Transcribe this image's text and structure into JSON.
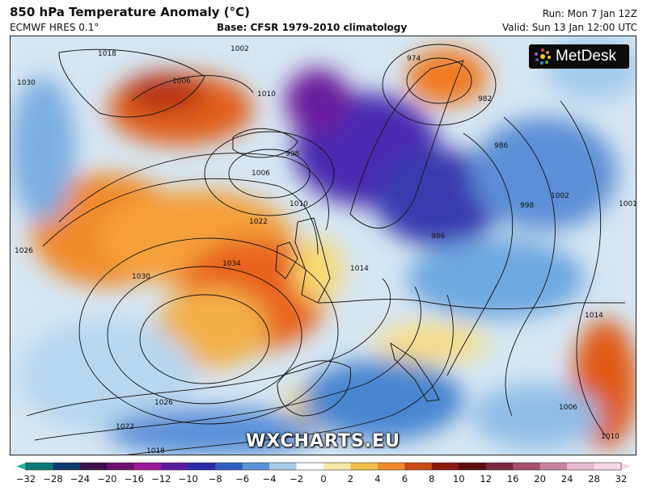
{
  "header": {
    "title": "850 hPa Temperature Anomaly (°C)",
    "model": "ECMWF HRES 0.1°",
    "base": "Base: CFSR 1979-2010 climatology",
    "run": "Run: Mon 7 Jan 12Z",
    "valid": "Valid: Sun 13 Jan 12:00 UTC"
  },
  "logo": {
    "text": "MetDesk"
  },
  "watermark": "WXCHARTS.EU",
  "map": {
    "isobar_labels": [
      "1018",
      "1002",
      "1006",
      "1010",
      "998",
      "1006",
      "1010",
      "1022",
      "1030",
      "1026",
      "1034",
      "1030",
      "1026",
      "1022",
      "1018",
      "974",
      "982",
      "986",
      "998",
      "1002",
      "1001",
      "1014",
      "1006",
      "1010",
      "986",
      "1014"
    ]
  },
  "colorbar": {
    "ticks": [
      "−32",
      "−28",
      "−24",
      "−20",
      "−16",
      "−12",
      "−10",
      "−8",
      "−6",
      "−4",
      "−2",
      "0",
      "2",
      "4",
      "6",
      "8",
      "10",
      "12",
      "16",
      "20",
      "24",
      "28",
      "32"
    ],
    "colors": [
      "#1fb89a",
      "#0e7a78",
      "#123a6e",
      "#3b0f4a",
      "#6e1270",
      "#a0189a",
      "#5a1aa0",
      "#2a2aa8",
      "#2f5fc0",
      "#5b93d6",
      "#a9cde8",
      "#ffffff",
      "#f7e7a6",
      "#f4c04a",
      "#f08a2a",
      "#c94a18",
      "#8a1a10",
      "#5a1010",
      "#7a2a40",
      "#a85070",
      "#c883a0",
      "#e8b8d0",
      "#f5d8e8"
    ]
  }
}
